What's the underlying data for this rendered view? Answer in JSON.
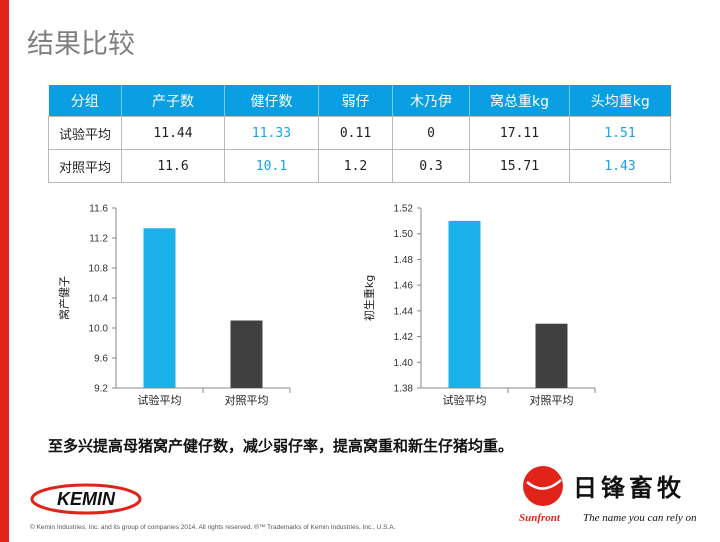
{
  "page": {
    "title": "结果比较"
  },
  "table": {
    "headers": [
      "分组",
      "产子数",
      "健仔数",
      "弱仔",
      "木乃伊",
      "窝总重kg",
      "头均重kg"
    ],
    "rows": [
      [
        "试验平均",
        "11.44",
        "11.33",
        "0.11",
        "0",
        "17.11",
        "1.51"
      ],
      [
        "对照平均",
        "11.6",
        "10.1",
        "1.2",
        "0.3",
        "15.71",
        "1.43"
      ]
    ],
    "highlight_columns": [
      2,
      6
    ],
    "highlight_color": "#1aa0e6"
  },
  "chart_data": [
    {
      "type": "bar",
      "categories": [
        "试验平均",
        "对照平均"
      ],
      "values": [
        11.33,
        10.1
      ],
      "ylabel": "窝产健子",
      "ylim": [
        9.2,
        11.6
      ],
      "yticks": [
        "9.2",
        "9.6",
        "10.0",
        "10.4",
        "10.8",
        "11.2",
        "11.6"
      ],
      "colors": [
        "#1ab0ea",
        "#404040"
      ],
      "grid": false,
      "legend": "none"
    },
    {
      "type": "bar",
      "categories": [
        "试验平均",
        "对照平均"
      ],
      "values": [
        1.51,
        1.43
      ],
      "ylabel": "初生重kg",
      "ylim": [
        1.38,
        1.52
      ],
      "yticks": [
        "1.38",
        "1.40",
        "1.42",
        "1.44",
        "1.46",
        "1.48",
        "1.50",
        "1.52"
      ],
      "colors": [
        "#1ab0ea",
        "#404040"
      ],
      "grid": false,
      "legend": "none"
    }
  ],
  "summary": "至多兴提高母猪窝产健仔数，减少弱仔率，提高窝重和新生仔猪均重。",
  "logos": {
    "kemin": "KEMIN",
    "sunfront_cn": "日锋畜牧",
    "sunfront_en": "Sunfront",
    "tagline": "The name you can rely on"
  },
  "footer": "© Kemin Industries, Inc. and its group of companies 2014. All rights reserved. ®™ Trademarks of Kemin Industries, Inc., U.S.A."
}
